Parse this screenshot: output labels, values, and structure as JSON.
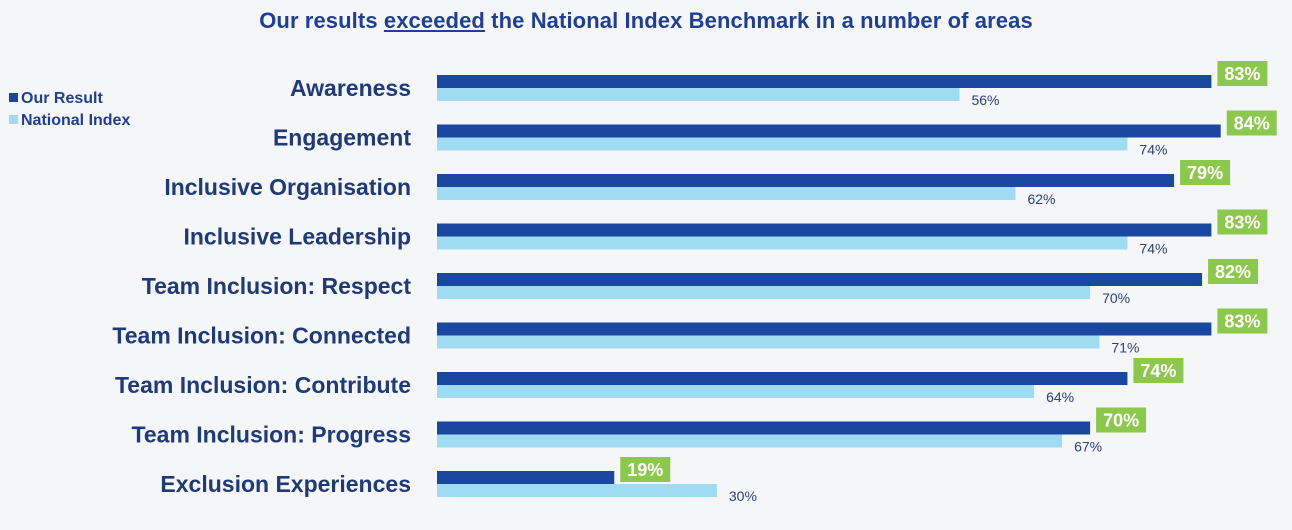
{
  "title": {
    "before": "Our results ",
    "emphasis": "exceeded",
    "after": " the National Index Benchmark in a number of areas"
  },
  "legend": {
    "items": [
      {
        "label": "Our Result",
        "color": "#1a47a0"
      },
      {
        "label": "National Index",
        "color": "#9fdcf2"
      }
    ]
  },
  "colors": {
    "ours": "#1a47a0",
    "national": "#9fdcf2",
    "label_box": "#8cc84b",
    "text": "#1f3a78"
  },
  "chart_data": {
    "type": "bar",
    "orientation": "horizontal",
    "title": "Our results exceeded the National Index Benchmark in a number of areas",
    "categories": [
      "Awareness",
      "Engagement",
      "Inclusive Organisation",
      "Inclusive Leadership",
      "Team Inclusion: Respect",
      "Team Inclusion: Connected",
      "Team Inclusion: Contribute",
      "Team Inclusion: Progress",
      "Exclusion Experiences"
    ],
    "series": [
      {
        "name": "Our Result",
        "values": [
          83,
          84,
          79,
          83,
          82,
          83,
          74,
          70,
          19
        ],
        "labels": [
          "83%",
          "84%",
          "79%",
          "83%",
          "82%",
          "83%",
          "74%",
          "70%",
          "19%"
        ]
      },
      {
        "name": "National Index",
        "values": [
          56,
          74,
          62,
          74,
          70,
          71,
          64,
          67,
          30
        ],
        "labels": [
          "56%",
          "74%",
          "62%",
          "74%",
          "70%",
          "71%",
          "64%",
          "67%",
          "30%"
        ]
      }
    ],
    "xlim": [
      0,
      100
    ],
    "legend_position": "top-left",
    "grid": false
  }
}
